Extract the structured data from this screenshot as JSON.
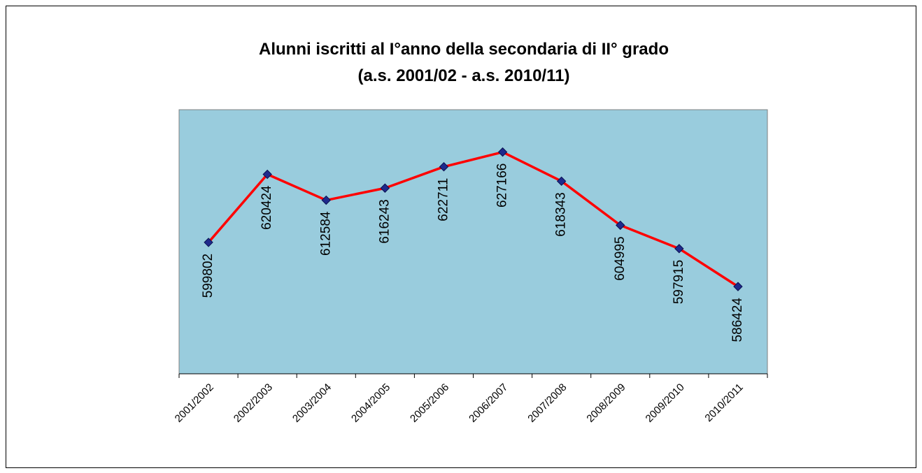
{
  "chart_data": {
    "type": "line",
    "title": [
      "Alunni iscritti al I°anno della secondaria di II°  grado",
      "(a.s. 2001/02 - a.s. 2010/11)"
    ],
    "categories": [
      "2001/2002",
      "2002/2003",
      "2003/2004",
      "2004/2005",
      "2005/2006",
      "2006/2007",
      "2007/2008",
      "2008/2009",
      "2009/2010",
      "2010/2011"
    ],
    "values": [
      599802,
      620424,
      612584,
      616243,
      622711,
      627166,
      618343,
      604995,
      597915,
      586424
    ],
    "color": "#ff0000",
    "marker_color": "#1f2a8c",
    "plot_background": "#99ccdd",
    "ylim": [
      560000,
      640000
    ]
  }
}
